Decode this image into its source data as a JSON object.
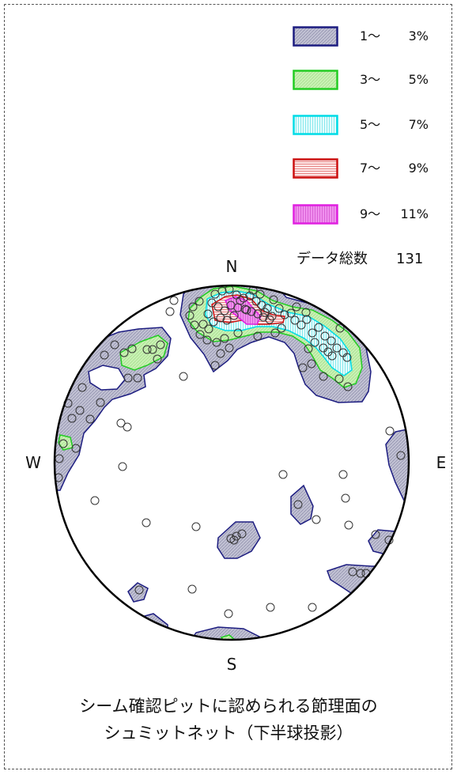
{
  "compass": {
    "north": "N",
    "east": "E",
    "south": "S",
    "west": "W"
  },
  "legend": {
    "items": [
      {
        "from": "1～",
        "to": "3%",
        "stroke": "#1c1c80",
        "fill": "#c2c2d4"
      },
      {
        "from": "3～",
        "to": "5%",
        "stroke": "#22cc22",
        "fill": "#c9f2b4"
      },
      {
        "from": "5～",
        "to": "7%",
        "stroke": "#00dce6",
        "fill": "#e6fcfc"
      },
      {
        "from": "7～",
        "to": "9%",
        "stroke": "#cc1010",
        "fill": "#fde8e8"
      },
      {
        "from": "9～",
        "to": "11%",
        "stroke": "#e020e0",
        "fill": "#f090ee"
      }
    ]
  },
  "total": {
    "label": "データ総数",
    "value": "131"
  },
  "caption": {
    "line1": "シーム確認ピットに認められる節理面の",
    "line2": "シュミットネット（下半球投影）"
  }
}
